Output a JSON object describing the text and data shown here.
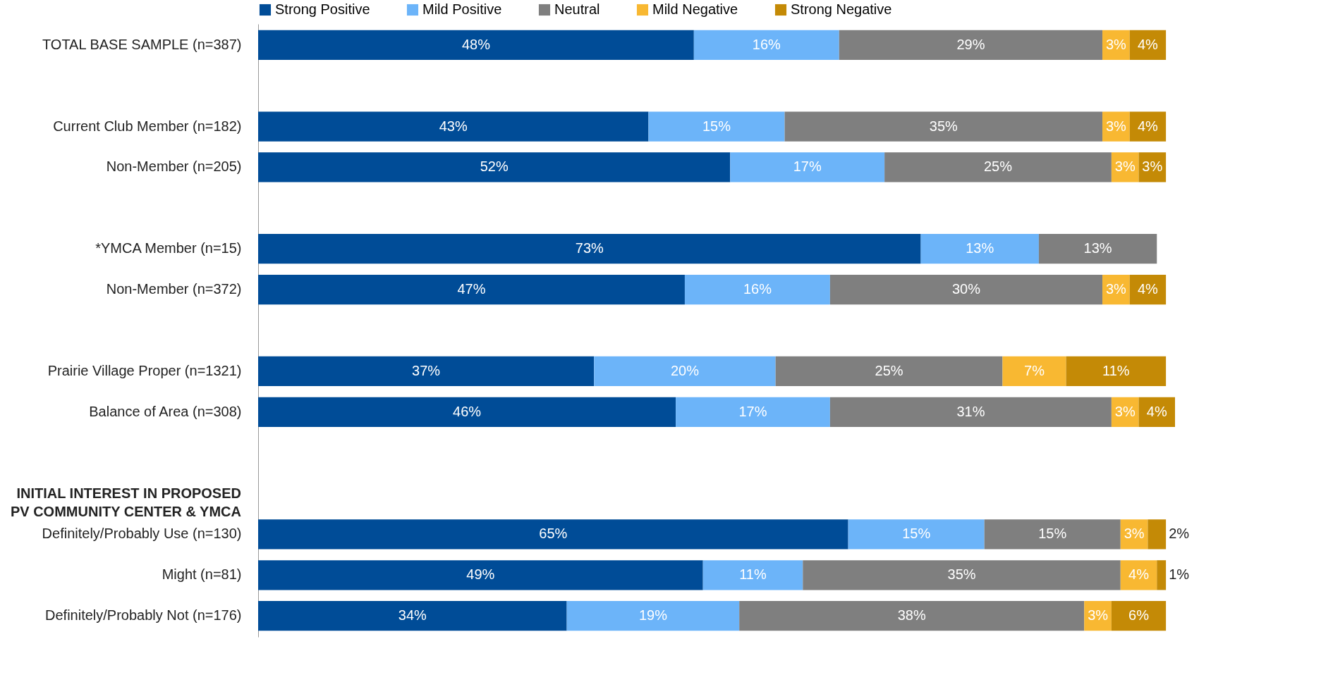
{
  "chart_data": {
    "type": "bar",
    "orientation": "horizontal",
    "stacked": true,
    "legend": "top",
    "tick_labels": "y",
    "categories": [
      "TOTAL BASE SAMPLE (n=387)",
      null,
      "Current Club Member (n=182)",
      "Non-Member (n=205)",
      null,
      "*YMCA Member (n=15)",
      "Non-Member (n=372)",
      null,
      "Prairie Village Proper (n=1321)",
      "Balance of Area (n=308)",
      null,
      null,
      "Definitely/Probably Use (n=130)",
      "Might (n=81)",
      "Definitely/Probably Not (n=176)"
    ],
    "annotations": [
      "INITIAL INTEREST IN PROPOSED PV COMMUNITY CENTER & YMCA"
    ],
    "series": [
      {
        "name": "Strong Positive",
        "color": "#004c97",
        "values": [
          48,
          null,
          43,
          52,
          null,
          73,
          47,
          null,
          37,
          46,
          null,
          null,
          65,
          49,
          34
        ],
        "value_labels": [
          "48%",
          null,
          "43%",
          "52%",
          null,
          "73%",
          "47%",
          null,
          "37%",
          "46%",
          null,
          null,
          "65%",
          "49%",
          "34%"
        ]
      },
      {
        "name": "Mild Positive",
        "color": "#6cb4f9",
        "values": [
          16,
          null,
          15,
          17,
          null,
          13,
          16,
          null,
          20,
          17,
          null,
          null,
          15,
          11,
          19
        ],
        "value_labels": [
          "16%",
          null,
          "15%",
          "17%",
          null,
          "13%",
          "16%",
          null,
          "20%",
          "17%",
          null,
          null,
          "15%",
          "11%",
          "19%"
        ]
      },
      {
        "name": "Neutral",
        "color": "#7f7f7f",
        "values": [
          29,
          null,
          35,
          25,
          null,
          13,
          30,
          null,
          25,
          31,
          null,
          null,
          15,
          35,
          38
        ],
        "value_labels": [
          "29%",
          null,
          "35%",
          "25%",
          null,
          "13%",
          "30%",
          null,
          "25%",
          "31%",
          null,
          null,
          "15%",
          "35%",
          "38%"
        ]
      },
      {
        "name": "Mild Negative",
        "color": "#f8b832",
        "values": [
          3,
          null,
          3,
          3,
          null,
          null,
          3,
          null,
          7,
          3,
          null,
          null,
          3,
          4,
          3
        ],
        "value_labels": [
          "3%",
          null,
          "3%",
          "3%",
          null,
          null,
          "3%",
          null,
          "7%",
          "3%",
          null,
          null,
          "3%",
          "4%",
          "3%"
        ]
      },
      {
        "name": "Strong Negative",
        "color": "#c48a06",
        "values": [
          4,
          null,
          4,
          3,
          null,
          null,
          4,
          null,
          11,
          4,
          null,
          null,
          2,
          1,
          6
        ],
        "value_labels": [
          "4%",
          null,
          "4%",
          "3%",
          null,
          null,
          "4%",
          null,
          "11%",
          "4%",
          null,
          null,
          "2%",
          "1%",
          "6%"
        ]
      }
    ]
  }
}
